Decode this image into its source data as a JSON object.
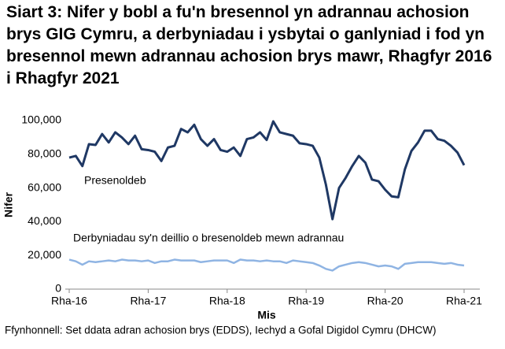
{
  "chart_data": {
    "type": "line",
    "title": "Siart 3: Nifer y bobl a fu'n bresennol yn adrannau achosion brys GIG Cymru, a derbyniadau i ysbytai o ganlyniad i fod yn bresennol mewn adrannau achosion brys mawr, Rhagfyr 2016 i Rhagfyr 2021",
    "y_label": "Nifer",
    "x_label": "Mis",
    "source": "Ffynhonnell: Set ddata adran achosion brys (EDDS), Iechyd a Gofal Digidol Cymru (DHCW)",
    "categories": [
      "Rha-16",
      null,
      null,
      null,
      null,
      null,
      null,
      null,
      null,
      null,
      null,
      null,
      "Rha-17",
      null,
      null,
      null,
      null,
      null,
      null,
      null,
      null,
      null,
      null,
      null,
      "Rha-18",
      null,
      null,
      null,
      null,
      null,
      null,
      null,
      null,
      null,
      null,
      null,
      "Rha-19",
      null,
      null,
      null,
      null,
      null,
      null,
      null,
      null,
      null,
      null,
      null,
      "Rha-20",
      null,
      null,
      null,
      null,
      null,
      null,
      null,
      null,
      null,
      null,
      null,
      "Rha-21"
    ],
    "series": [
      {
        "name": "Presenoldeb",
        "color": "#1f3864",
        "values": [
          78000,
          79000,
          73000,
          86000,
          85500,
          92000,
          87000,
          93000,
          90000,
          86000,
          91000,
          83000,
          82500,
          81500,
          76000,
          84000,
          85000,
          95000,
          93000,
          97500,
          89000,
          85000,
          89000,
          82500,
          81500,
          84000,
          79000,
          89000,
          90000,
          93000,
          88500,
          99500,
          93000,
          92000,
          91000,
          86500,
          86000,
          85000,
          78000,
          62000,
          41500,
          60000,
          66000,
          73000,
          79000,
          75000,
          65000,
          64000,
          59000,
          55000,
          54500,
          71000,
          82000,
          87000,
          94000,
          94000,
          89000,
          88000,
          85000,
          81000,
          73500
        ]
      },
      {
        "name": "Derbyniadau sy'n deillio o bresenoldeb mewn adrannau",
        "color": "#8fb4e3",
        "values": [
          17500,
          16500,
          14500,
          16500,
          16000,
          16500,
          17000,
          16500,
          17500,
          17000,
          17000,
          16500,
          17000,
          15500,
          16500,
          16500,
          17500,
          17000,
          17000,
          17000,
          16000,
          16500,
          17000,
          17000,
          17000,
          15500,
          17500,
          17000,
          17000,
          16500,
          17000,
          16500,
          16500,
          15500,
          17000,
          16500,
          16000,
          15500,
          14000,
          12000,
          11000,
          13500,
          14500,
          15500,
          16000,
          15500,
          14500,
          13500,
          14000,
          13500,
          12000,
          15000,
          15500,
          16000,
          16000,
          16000,
          15500,
          15000,
          15500,
          14500,
          14000
        ]
      }
    ],
    "ylim": [
      0,
      100000
    ],
    "yticks": [
      0,
      {
        "value": 20000,
        "label": "20,000"
      },
      {
        "value": 40000,
        "label": "40,000"
      },
      {
        "value": 60000,
        "label": "60,000"
      },
      {
        "value": 80000,
        "label": "80,000"
      },
      {
        "value": 100000,
        "label": "100,000"
      }
    ],
    "grid": false
  }
}
